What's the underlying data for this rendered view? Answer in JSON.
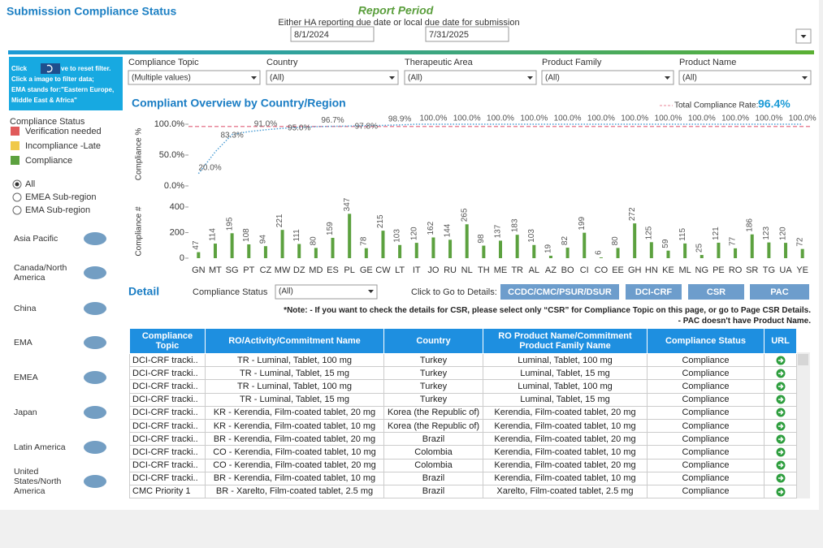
{
  "header": {
    "title": "Submission Compliance Status",
    "report_period": "Report Period",
    "period_note": "Either HA reporting due date or local due date for submission",
    "start_date": "8/1/2024",
    "end_date": "7/31/2025"
  },
  "info": {
    "line1a": "Click",
    "line1b": "ve to reset filter.",
    "line2": "Click a image to filter data;",
    "line3": "EMA stands for:\"Eastern Europe,",
    "line4": "Middle East & Africa\""
  },
  "filters": [
    {
      "label": "Compliance Topic",
      "value": "(Multiple values)"
    },
    {
      "label": "Country",
      "value": "(All)"
    },
    {
      "label": "Therapeutic Area",
      "value": "(All)"
    },
    {
      "label": "Product Family",
      "value": "(All)"
    },
    {
      "label": "Product Name",
      "value": "(All)"
    }
  ],
  "status_legend": {
    "title": "Compliance Status",
    "items": [
      {
        "name": "Verification needed",
        "color": "#e05a5a"
      },
      {
        "name": "Incompliance -Late",
        "color": "#f0c94a"
      },
      {
        "name": "Compliance",
        "color": "#5ca13f"
      }
    ]
  },
  "region_options": {
    "items": [
      "All",
      "EMEA Sub-region",
      "EMA Sub-region"
    ],
    "selected": 0
  },
  "regions": [
    "Asia Pacific",
    "Canada/North America",
    "China",
    "EMA",
    "EMEA",
    "Japan",
    "Latin America",
    "United States/North America"
  ],
  "chart_data": [
    {
      "type": "line",
      "title": "Compliant Overview by Country/Region",
      "y_label": "Compliance %",
      "color": "#4e9fd6",
      "values": [
        20.0,
        55.3,
        83.3,
        88.0,
        91.0,
        93.3,
        95.0,
        96.0,
        96.7,
        97.0,
        97.8,
        98.1,
        98.9,
        100.0,
        100.0,
        100.0,
        100.0,
        100.0,
        100.0,
        100.0,
        100.0,
        100.0,
        100.0,
        100.0,
        100.0,
        100.0,
        100.0,
        100.0,
        100.0,
        100.0,
        100.0,
        100.0,
        100.0,
        100.0,
        100.0,
        100.0,
        100.0
      ],
      "value_labels": [
        "20.0%",
        null,
        "83.3%",
        null,
        "91.0%",
        null,
        "95.0%",
        null,
        "96.7%",
        null,
        "97.8%",
        null,
        "98.9%",
        null,
        "100.0%",
        null,
        "100.0%",
        null,
        "100.0%",
        null,
        "100.0%",
        null,
        "100.0%",
        null,
        "100.0%",
        null,
        "100.0%",
        null,
        "100.0%",
        null,
        "100.0%",
        null,
        "100.0%",
        null,
        "100.0%",
        null,
        "100.0%"
      ],
      "ylim": [
        0,
        100
      ],
      "yticks": [
        {
          "value": 0,
          "label": "0.0%"
        },
        {
          "value": 50,
          "label": "50.0%"
        },
        {
          "value": 100,
          "label": "100.0%"
        }
      ],
      "reference": {
        "label": "Total Compliance Rate:",
        "value": 96.4,
        "value_label": "96.4%",
        "color": "#e8879a"
      }
    },
    {
      "type": "bar",
      "y_label": "Compliance #",
      "color": "#5ca13f",
      "categories": [
        "GN",
        "MT",
        "SG",
        "PT",
        "CZ",
        "MW",
        "DZ",
        "MD",
        "ES",
        "PL",
        "GE",
        "CW",
        "LT",
        "IT",
        "JO",
        "RU",
        "NL",
        "TH",
        "ME",
        "TR",
        "AL",
        "AZ",
        "BO",
        "CI",
        "CO",
        "EE",
        "GH",
        "HN",
        "KE",
        "ML",
        "NG",
        "PE",
        "RO",
        "SR",
        "TG",
        "UA",
        "YE"
      ],
      "values": [
        47,
        114,
        195,
        108,
        94,
        221,
        111,
        80,
        159,
        347,
        78,
        215,
        103,
        120,
        162,
        144,
        265,
        98,
        137,
        183,
        103,
        19,
        82,
        199,
        6,
        80,
        272,
        125,
        59,
        115,
        25,
        121,
        77,
        186,
        123,
        120,
        72
      ],
      "ylim": [
        0,
        400
      ],
      "yticks": [
        0,
        200,
        400
      ]
    }
  ],
  "detail": {
    "title": "Detail",
    "filter_label": "Compliance Status",
    "filter_value": "(All)",
    "goto_label": "Click to Go to Details:",
    "buttons": [
      "CCDC/CMC/PSUR/DSUR",
      "DCI-CRF",
      "CSR",
      "PAC"
    ],
    "notes": [
      "*Note: - If you want to check the details for CSR, please select only “CSR” for Compliance Topic on this page, or go to Page CSR Details.",
      "- PAC doesn't have Product Name."
    ]
  },
  "table": {
    "columns": [
      "Compliance Topic",
      "RO/Activity/Commitment Name",
      "Country",
      "RO Product Name/Commitment Product Family Name",
      "Compliance Status",
      "URL"
    ],
    "rows": [
      [
        "DCI-CRF tracki..",
        "TR - Luminal, Tablet, 100 mg",
        "Turkey",
        "Luminal, Tablet, 100 mg",
        "Compliance"
      ],
      [
        "DCI-CRF tracki..",
        "TR - Luminal, Tablet, 15 mg",
        "Turkey",
        "Luminal, Tablet, 15 mg",
        "Compliance"
      ],
      [
        "DCI-CRF tracki..",
        "TR - Luminal, Tablet, 100 mg",
        "Turkey",
        "Luminal, Tablet, 100 mg",
        "Compliance"
      ],
      [
        "DCI-CRF tracki..",
        "TR - Luminal, Tablet, 15 mg",
        "Turkey",
        "Luminal, Tablet, 15 mg",
        "Compliance"
      ],
      [
        "DCI-CRF tracki..",
        "KR - Kerendia, Film-coated tablet, 20 mg",
        "Korea (the Republic of)",
        "Kerendia, Film-coated tablet, 20 mg",
        "Compliance"
      ],
      [
        "DCI-CRF tracki..",
        "KR - Kerendia, Film-coated tablet, 10 mg",
        "Korea (the Republic of)",
        "Kerendia, Film-coated tablet, 10 mg",
        "Compliance"
      ],
      [
        "DCI-CRF tracki..",
        "BR - Kerendia, Film-coated tablet, 20 mg",
        "Brazil",
        "Kerendia, Film-coated tablet, 20 mg",
        "Compliance"
      ],
      [
        "DCI-CRF tracki..",
        "CO - Kerendia, Film-coated tablet, 10 mg",
        "Colombia",
        "Kerendia, Film-coated tablet, 10 mg",
        "Compliance"
      ],
      [
        "DCI-CRF tracki..",
        "CO - Kerendia, Film-coated tablet, 20 mg",
        "Colombia",
        "Kerendia, Film-coated tablet, 20 mg",
        "Compliance"
      ],
      [
        "DCI-CRF tracki..",
        "BR - Kerendia, Film-coated tablet, 10 mg",
        "Brazil",
        "Kerendia, Film-coated tablet, 10 mg",
        "Compliance"
      ],
      [
        "CMC Priority 1",
        "BR - Xarelto, Film-coated tablet, 2.5 mg",
        "Brazil",
        "Xarelto, Film-coated tablet, 2.5 mg",
        "Compliance"
      ]
    ]
  }
}
